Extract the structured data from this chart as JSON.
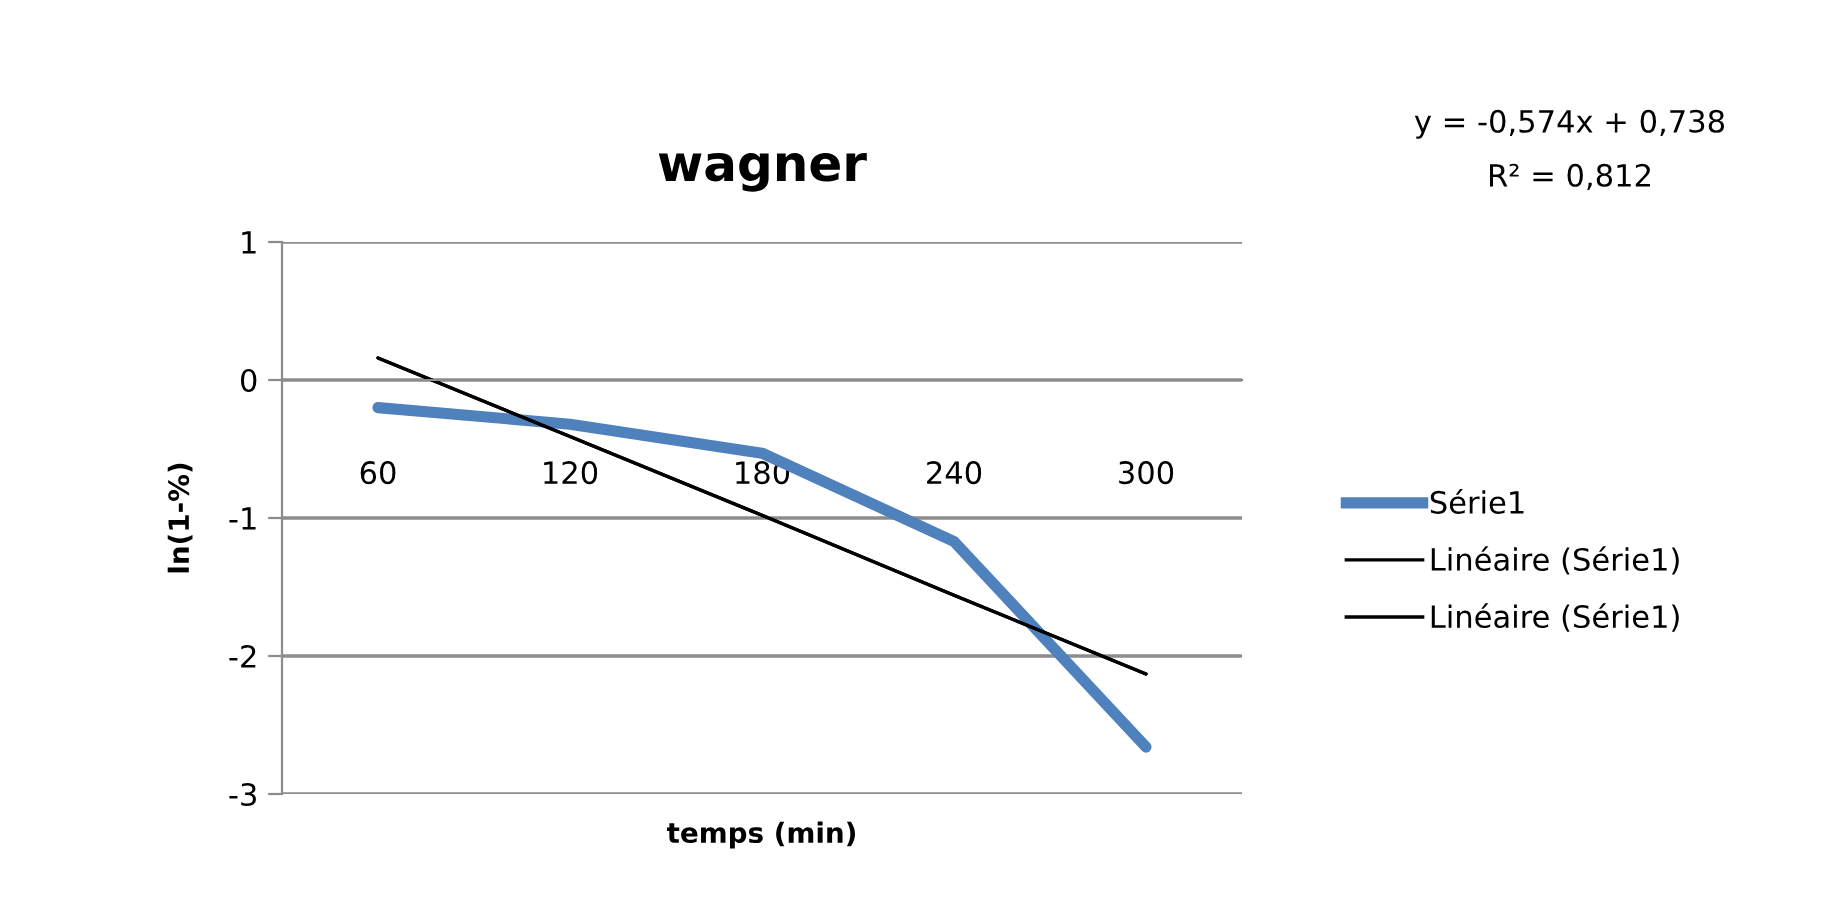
{
  "chart_data": {
    "type": "line",
    "title": "wagner",
    "xlabel": "temps (min)",
    "ylabel": "ln(1-%)",
    "categories": [
      "60",
      "120",
      "180",
      "240",
      "300"
    ],
    "series": [
      {
        "name": "Série1",
        "color": "#4f81bd",
        "values": [
          -0.2,
          -0.32,
          -0.53,
          -1.17,
          -2.66
        ]
      },
      {
        "name": "Linéaire (Série1)",
        "color": "#000000",
        "values": [
          0.16,
          -0.41,
          -0.98,
          -1.56,
          -2.13
        ]
      },
      {
        "name": "Linéaire (Série1)",
        "color": "#000000",
        "values": [
          0.16,
          -0.41,
          -0.98,
          -1.56,
          -2.13
        ]
      }
    ],
    "ylim": [
      -3,
      1
    ],
    "yticks": [
      -3,
      -2,
      -1,
      0,
      1
    ],
    "grid": "y",
    "legend": "right",
    "annotations": [
      "y = -0,574x + 0,738",
      "R² = 0,812"
    ]
  }
}
